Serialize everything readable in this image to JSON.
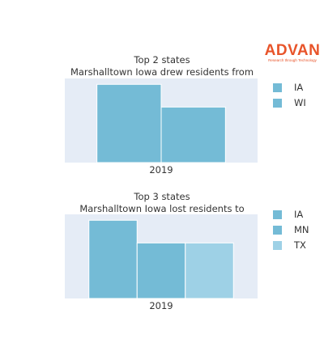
{
  "logo": {
    "name": "ADVAN",
    "tagline": "Research through Technology",
    "color": "#e8542a"
  },
  "colors": {
    "plot_background": "#e5ecf6",
    "IA": "#74bbd6",
    "WI": "#74bbd6",
    "MN": "#74bbd6",
    "TX": "#9ed1e6"
  },
  "chart_data": [
    {
      "type": "bar",
      "title_line1": "Top 2 states",
      "title_line2": "Marshalltown Iowa drew residents from",
      "categories": [
        "2019"
      ],
      "series": [
        {
          "name": "IA",
          "values": [
            1.0
          ]
        },
        {
          "name": "WI",
          "values": [
            0.71
          ]
        }
      ],
      "ylim": [
        0,
        1.0
      ],
      "legend": "right",
      "grid": false
    },
    {
      "type": "bar",
      "title_line1": "Top 3 states",
      "title_line2": "Marshalltown Iowa lost residents to",
      "categories": [
        "2019"
      ],
      "series": [
        {
          "name": "IA",
          "values": [
            1.0
          ]
        },
        {
          "name": "MN",
          "values": [
            0.71
          ]
        },
        {
          "name": "TX",
          "values": [
            0.71
          ]
        }
      ],
      "ylim": [
        0,
        1.0
      ],
      "legend": "right",
      "grid": false
    }
  ]
}
